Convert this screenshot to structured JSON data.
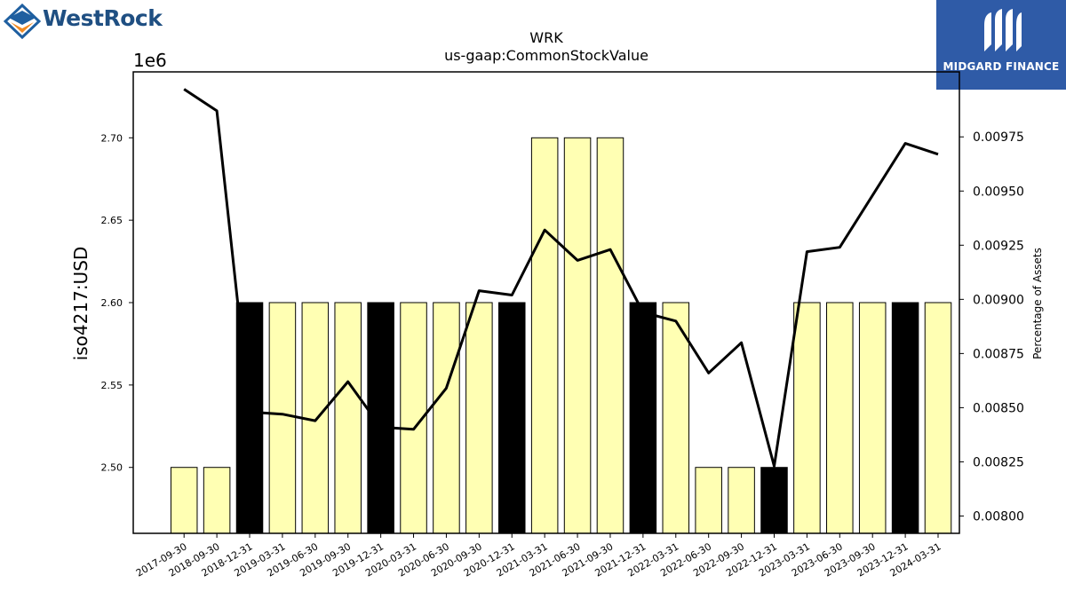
{
  "branding": {
    "left_logo_text": "WestRock",
    "right_logo_text": "MIDGARD FINANCE"
  },
  "colors": {
    "bar_light": "#ffffb3",
    "bar_dark": "#000000",
    "line": "#000000",
    "right_logo_bg": "#2f5ba7"
  },
  "chart_data": {
    "type": "bar",
    "title": "WRK",
    "subtitle": "us-gaap:CommonStockValue",
    "ylabel": "iso4217:USD",
    "y_offset_label": "1e6",
    "y2label": "Percentage of Assets",
    "categories": [
      "2017-09-30",
      "2018-09-30",
      "2018-12-31",
      "2019-03-31",
      "2019-06-30",
      "2019-09-30",
      "2019-12-31",
      "2020-03-31",
      "2020-06-30",
      "2020-09-30",
      "2020-12-31",
      "2021-03-31",
      "2021-06-30",
      "2021-09-30",
      "2021-12-31",
      "2022-03-31",
      "2022-06-30",
      "2022-09-30",
      "2022-12-31",
      "2023-03-31",
      "2023-06-30",
      "2023-09-30",
      "2023-12-31",
      "2024-03-31"
    ],
    "values": [
      2500000,
      2500000,
      2600000,
      2600000,
      2600000,
      2600000,
      2600000,
      2600000,
      2600000,
      2600000,
      2600000,
      2700000,
      2700000,
      2700000,
      2600000,
      2600000,
      2500000,
      2500000,
      2500000,
      2600000,
      2600000,
      2600000,
      2600000,
      2600000
    ],
    "bar_shade": [
      "light",
      "light",
      "dark",
      "light",
      "light",
      "light",
      "dark",
      "light",
      "light",
      "light",
      "dark",
      "light",
      "light",
      "light",
      "dark",
      "light",
      "light",
      "light",
      "dark",
      "light",
      "light",
      "light",
      "dark",
      "light"
    ],
    "ylim": [
      2460000,
      2740000
    ],
    "yticks": [
      2500000,
      2550000,
      2600000,
      2650000,
      2700000
    ],
    "ytick_labels": [
      "2.50",
      "2.55",
      "2.60",
      "2.65",
      "2.70"
    ],
    "series": [
      {
        "type": "line",
        "axis": "right",
        "values": [
          0.00997,
          0.00987,
          0.00848,
          0.00847,
          0.00844,
          0.00862,
          0.00841,
          0.0084,
          0.00859,
          0.00904,
          0.00902,
          0.00932,
          0.00918,
          0.00923,
          0.00894,
          0.0089,
          0.00866,
          0.0088,
          0.00823,
          0.00922,
          0.00924,
          0.00948,
          0.00972,
          0.00967
        ]
      }
    ],
    "y2lim": [
      0.00792,
      0.01005
    ],
    "y2ticks": [
      0.008,
      0.00825,
      0.0085,
      0.00875,
      0.009,
      0.00925,
      0.0095,
      0.00975
    ],
    "y2tick_labels": [
      "0.00800",
      "0.00825",
      "0.00850",
      "0.00875",
      "0.00900",
      "0.00925",
      "0.00950",
      "0.00975"
    ],
    "grid": false,
    "legend": "none"
  }
}
